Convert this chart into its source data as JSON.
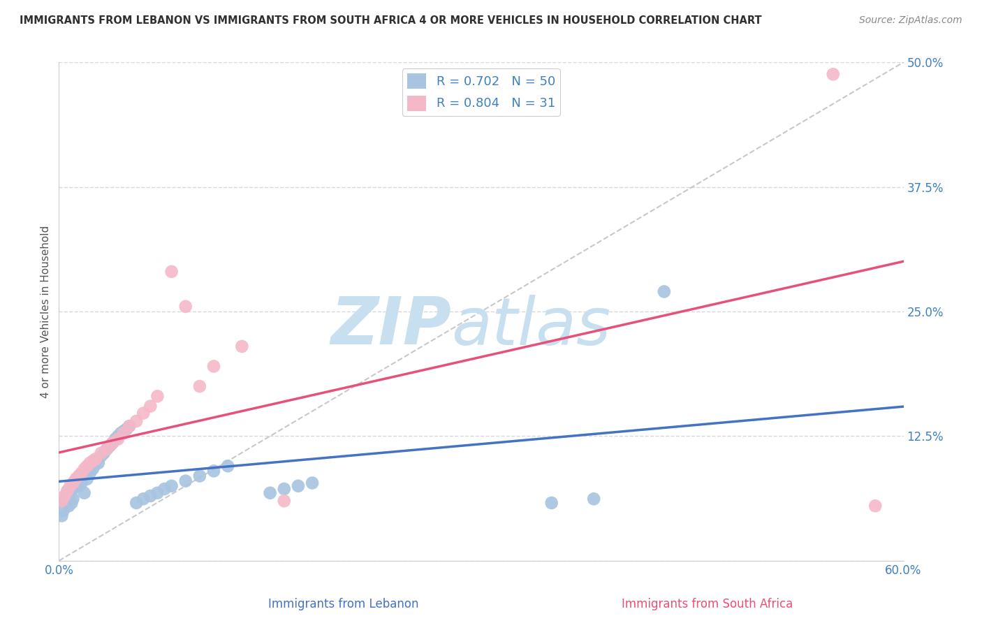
{
  "title": "IMMIGRANTS FROM LEBANON VS IMMIGRANTS FROM SOUTH AFRICA 4 OR MORE VEHICLES IN HOUSEHOLD CORRELATION CHART",
  "source": "Source: ZipAtlas.com",
  "ylabel": "4 or more Vehicles in Household",
  "x_bottom_label_lebanon": "Immigrants from Lebanon",
  "x_bottom_label_sa": "Immigrants from South Africa",
  "xlim": [
    0.0,
    0.6
  ],
  "ylim": [
    0.0,
    0.5
  ],
  "xticks": [
    0.0,
    0.1,
    0.2,
    0.3,
    0.4,
    0.5,
    0.6
  ],
  "xticklabels": [
    "0.0%",
    "",
    "",
    "",
    "",
    "",
    "60.0%"
  ],
  "yticks": [
    0.0,
    0.125,
    0.25,
    0.375,
    0.5
  ],
  "yticklabels": [
    "",
    "12.5%",
    "25.0%",
    "37.5%",
    "50.0%"
  ],
  "lebanon_R": 0.702,
  "lebanon_N": 50,
  "sa_R": 0.804,
  "sa_N": 31,
  "lebanon_color": "#a8c4e0",
  "sa_color": "#f4b8c8",
  "lebanon_line_color": "#4472c4",
  "sa_line_color": "#e8507a",
  "ref_line_color": "#bbbbbb",
  "title_color": "#303030",
  "source_color": "#888888",
  "axis_label_color": "#555555",
  "tick_label_color": "#4080c0",
  "grid_color": "#d8d8d8",
  "watermark_zip_color": "#c8dff0",
  "watermark_atlas_color": "#c8dff0",
  "lebanon_scatter_x": [
    0.002,
    0.003,
    0.004,
    0.005,
    0.006,
    0.007,
    0.008,
    0.009,
    0.01,
    0.01,
    0.012,
    0.014,
    0.015,
    0.016,
    0.018,
    0.02,
    0.02,
    0.022,
    0.024,
    0.025,
    0.026,
    0.028,
    0.03,
    0.032,
    0.034,
    0.036,
    0.038,
    0.04,
    0.042,
    0.044,
    0.046,
    0.048,
    0.05,
    0.055,
    0.06,
    0.065,
    0.07,
    0.075,
    0.08,
    0.09,
    0.1,
    0.11,
    0.12,
    0.15,
    0.16,
    0.17,
    0.18,
    0.35,
    0.38,
    0.43
  ],
  "lebanon_scatter_y": [
    0.045,
    0.05,
    0.06,
    0.065,
    0.07,
    0.055,
    0.068,
    0.058,
    0.062,
    0.072,
    0.08,
    0.075,
    0.085,
    0.078,
    0.068,
    0.09,
    0.082,
    0.088,
    0.092,
    0.095,
    0.1,
    0.098,
    0.105,
    0.108,
    0.112,
    0.115,
    0.118,
    0.122,
    0.125,
    0.128,
    0.13,
    0.132,
    0.135,
    0.058,
    0.062,
    0.065,
    0.068,
    0.072,
    0.075,
    0.08,
    0.085,
    0.09,
    0.095,
    0.068,
    0.072,
    0.075,
    0.078,
    0.058,
    0.062,
    0.27
  ],
  "sa_scatter_x": [
    0.002,
    0.004,
    0.006,
    0.008,
    0.01,
    0.012,
    0.014,
    0.016,
    0.018,
    0.02,
    0.022,
    0.024,
    0.026,
    0.03,
    0.034,
    0.038,
    0.042,
    0.046,
    0.05,
    0.055,
    0.06,
    0.065,
    0.07,
    0.08,
    0.09,
    0.1,
    0.11,
    0.13,
    0.16,
    0.55,
    0.58
  ],
  "sa_scatter_y": [
    0.06,
    0.065,
    0.07,
    0.075,
    0.078,
    0.082,
    0.085,
    0.088,
    0.092,
    0.095,
    0.098,
    0.1,
    0.102,
    0.108,
    0.112,
    0.118,
    0.122,
    0.128,
    0.135,
    0.14,
    0.148,
    0.155,
    0.165,
    0.29,
    0.255,
    0.175,
    0.195,
    0.215,
    0.06,
    0.488,
    0.055
  ]
}
